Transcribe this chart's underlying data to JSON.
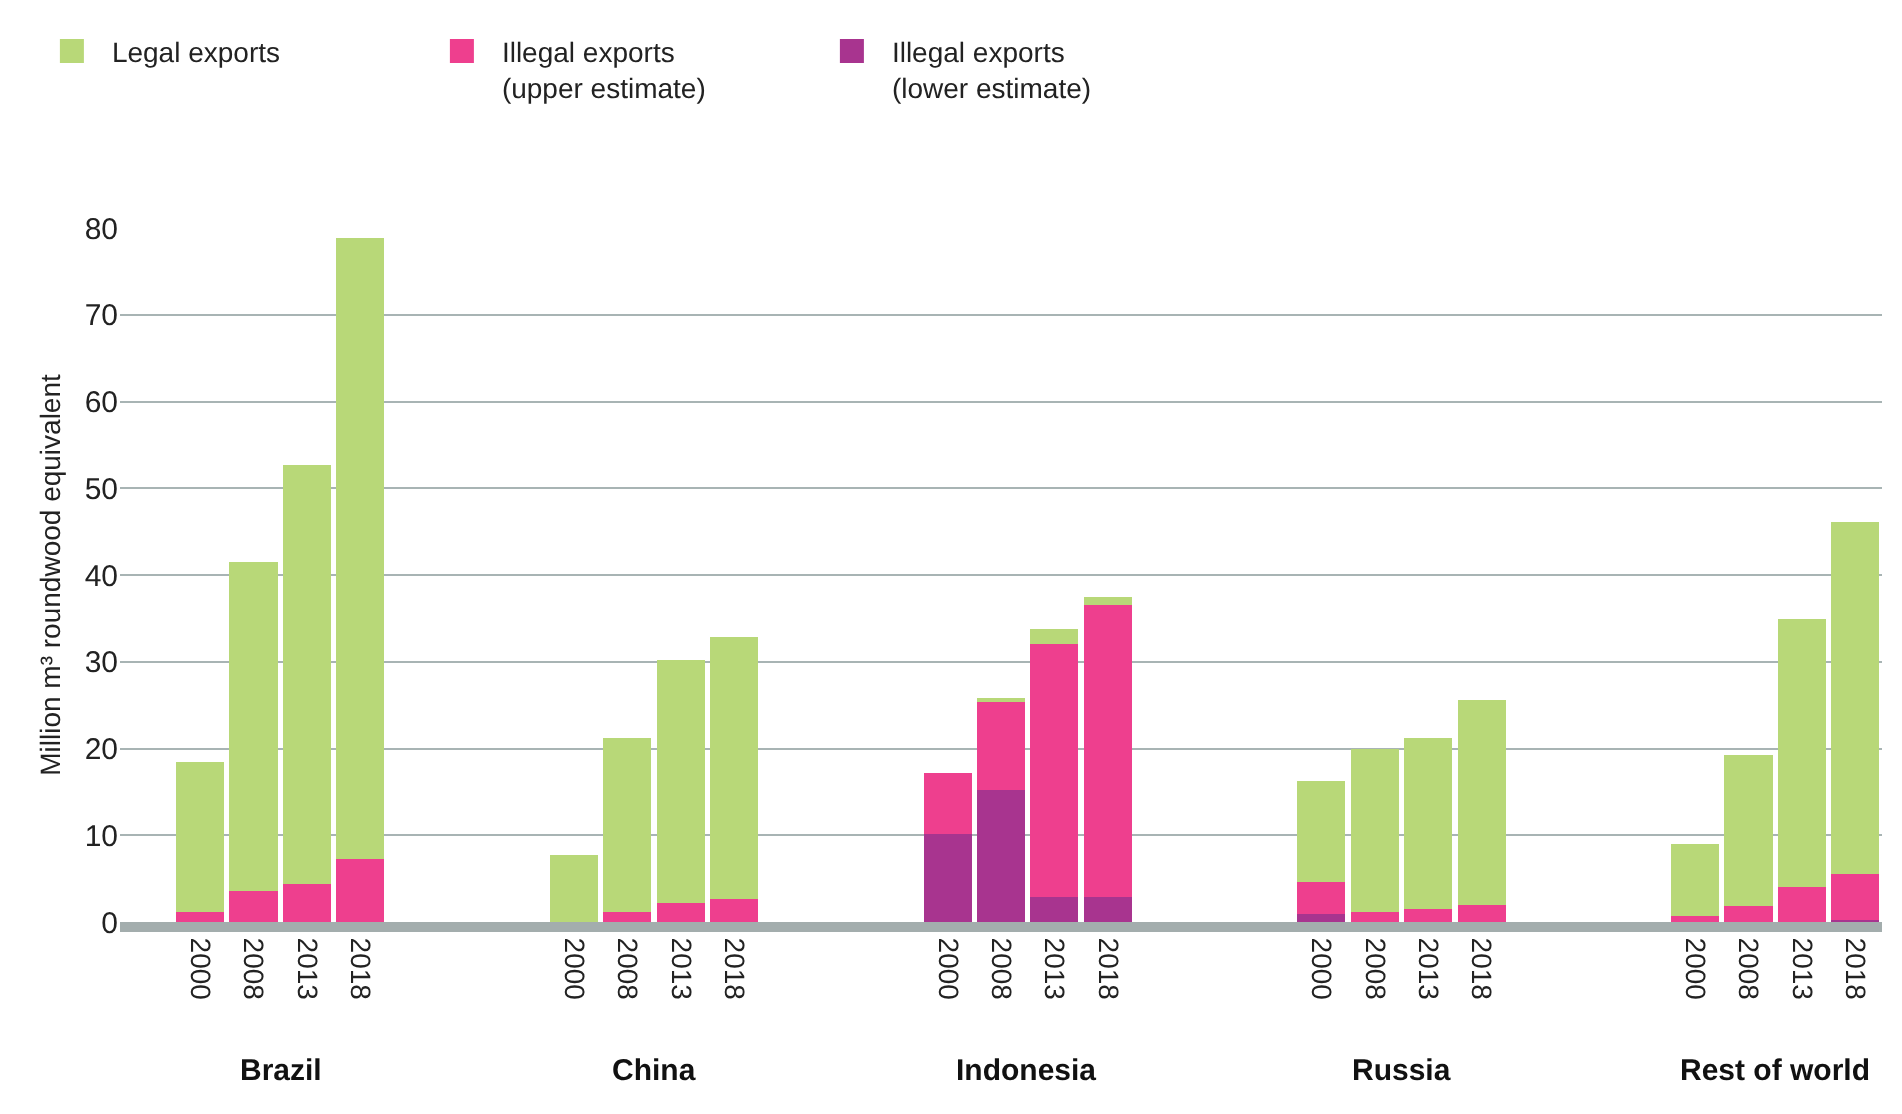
{
  "chart_data": {
    "type": "bar",
    "stacked": true,
    "ylabel": "Million m³ roundwood equivalent",
    "categories": [
      "2000",
      "2008",
      "2013",
      "2018",
      null,
      null,
      null,
      "2000",
      "2008",
      "2013",
      "2018",
      null,
      null,
      null,
      "2000",
      "2008",
      "2013",
      "2018",
      null,
      null,
      null,
      "2000",
      "2008",
      "2013",
      "2018",
      null,
      null,
      null,
      "2000",
      "2008",
      "2013",
      "2018"
    ],
    "annotations": [
      "Brazil",
      "China",
      "Indonesia",
      "Russia",
      "Rest of world"
    ],
    "series": [
      {
        "name": "Illegal exports\n(lower estimate)",
        "color": "#a8348f",
        "values": [
          0,
          0,
          0,
          0,
          null,
          null,
          null,
          0,
          0,
          0,
          0,
          null,
          null,
          null,
          10.1,
          15.2,
          2.9,
          2.9,
          null,
          null,
          null,
          0.9,
          0,
          0,
          0,
          null,
          null,
          null,
          0,
          0,
          0,
          0.2
        ]
      },
      {
        "name": "Illegal exports\n(upper estimate)",
        "color": "#ee3f8e",
        "values": [
          1.1,
          3.6,
          4.4,
          7.3,
          null,
          null,
          null,
          0,
          1.1,
          2.2,
          2.6,
          null,
          null,
          null,
          7.1,
          10.2,
          29.1,
          33.7,
          null,
          null,
          null,
          3.7,
          1.1,
          1.5,
          2.0,
          null,
          null,
          null,
          0.7,
          1.8,
          4.0,
          5.3
        ]
      },
      {
        "name": "Legal exports",
        "color": "#b8d878",
        "values": [
          17.4,
          37.9,
          48.3,
          71.5,
          null,
          null,
          null,
          7.7,
          20.1,
          28.0,
          30.3,
          null,
          null,
          null,
          0,
          0.4,
          1.8,
          0.9,
          null,
          null,
          null,
          11.7,
          18.8,
          19.7,
          23.6,
          null,
          null,
          null,
          8.3,
          17.4,
          30.9,
          40.6
        ]
      }
    ],
    "ylim": [
      0,
      80
    ],
    "yticks": [
      0,
      10,
      20,
      30,
      40,
      50,
      60,
      70,
      80
    ],
    "grid": "y",
    "legend": "top left"
  }
}
